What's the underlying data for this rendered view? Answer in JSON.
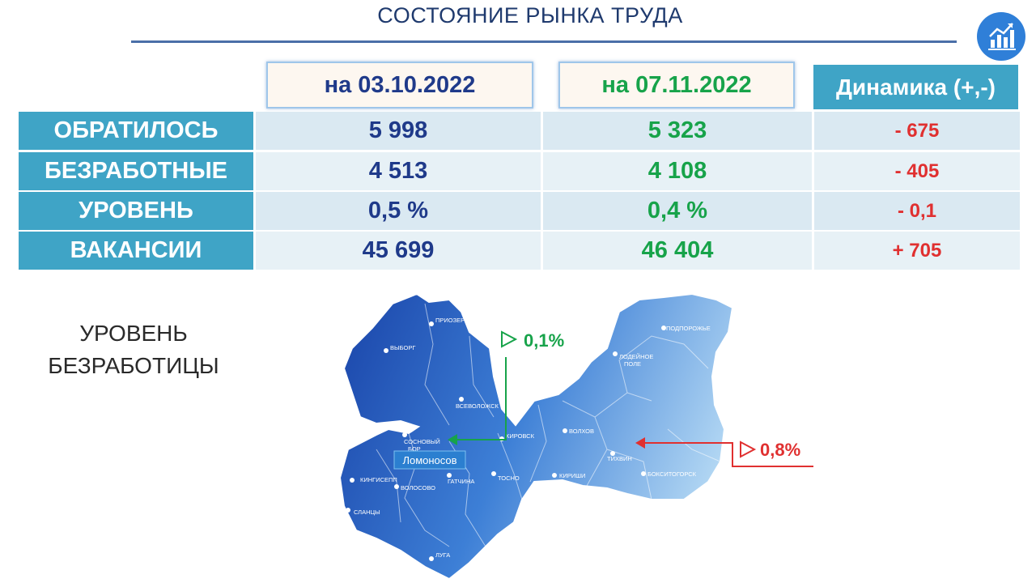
{
  "header": {
    "title": "СОСТОЯНИЕ РЫНКА ТРУДА"
  },
  "logo": {
    "icon": "chart-growth-icon",
    "color": "#2f7fd8"
  },
  "table": {
    "col1": "на 03.10.2022",
    "col2": "на 07.11.2022",
    "col3": "Динамика (+,-)",
    "rows": [
      {
        "label": "ОБРАТИЛОСЬ",
        "v1": "5 998",
        "v2": "5 323",
        "v3": "- 675"
      },
      {
        "label": "БЕЗРАБОТНЫЕ",
        "v1": "4 513",
        "v2": "4 108",
        "v3": "- 405"
      },
      {
        "label": "УРОВЕНЬ",
        "v1": "0,5 %",
        "v2": "0,4 %",
        "v3": "- 0,1"
      },
      {
        "label": "ВАКАНСИИ",
        "v1": "45 699",
        "v2": "46 404",
        "v3": "+ 705"
      }
    ]
  },
  "unemployment": {
    "line1": "УРОВЕНЬ",
    "line2": "БЕЗРАБОТИЦЫ"
  },
  "map": {
    "min_rate": "0,1%",
    "max_rate": "0,8%",
    "highlight_city": "Ломоносов",
    "cities": {
      "priozersk": "ПРИОЗЕРСК",
      "vyborg": "ВЫБОРГ",
      "vsevolozhsk": "ВСЕВОЛОЖСК",
      "kirovsk": "КИРОВСК",
      "sosnovy_bor_1": "СОСНОВЫЙ",
      "sosnovy_bor_2": "БОР",
      "volkhov": "ВОЛХОВ",
      "tikhvin": "ТИХВИН",
      "kirishi": "КИРИШИ",
      "tosno": "ТОСНО",
      "gatchina": "ГАТЧИНА",
      "volosovo": "ВОЛОСОВО",
      "kingisepp": "КИНГИСЕПП",
      "slantsy": "СЛАНЦЫ",
      "luga": "ЛУГА",
      "podporozhye": "ПОДПОРОЖЬЕ",
      "lodeynoye_1": "ЛОДЕЙНОЕ",
      "lodeynoye_2": "ПОЛЕ",
      "boksitogorsk": "БОКСИТОГОРСК"
    },
    "colors": {
      "min": "#17a34a",
      "max": "#e03030",
      "dark": "#1e4fae",
      "light": "#b9dcf5"
    }
  }
}
